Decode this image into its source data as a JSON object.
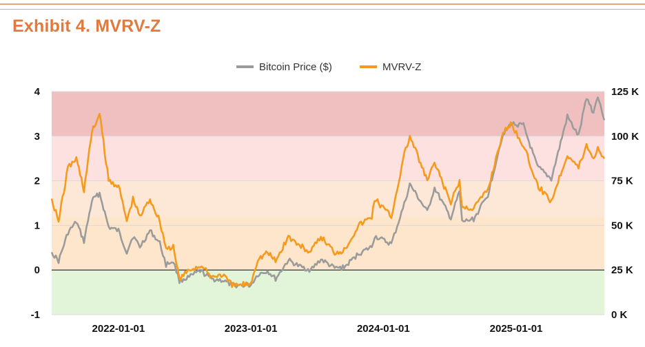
{
  "header": {
    "title": "Exhibit 4. MVRV-Z"
  },
  "chart_data": {
    "type": "line",
    "title": "Exhibit 4. MVRV-Z",
    "legend_position": "top-center",
    "colors": {
      "price": "#9b9b9b",
      "mvrvz": "#f59a1c",
      "zone_red": "#f0c0c0",
      "zone_pink": "#fde0e0",
      "zone_peach": "#fde8d8",
      "zone_orange": "#fde6cc",
      "zone_green": "#e2f5d8"
    },
    "zones": [
      {
        "from": 3,
        "to": 4,
        "color": "#f0c0c0"
      },
      {
        "from": 2,
        "to": 3,
        "color": "#fde0e0"
      },
      {
        "from": 1.2,
        "to": 2,
        "color": "#fde8d8"
      },
      {
        "from": 0,
        "to": 1.2,
        "color": "#fde6cc"
      },
      {
        "from": -1,
        "to": 0,
        "color": "#e2f5d8"
      }
    ],
    "y_left": {
      "min": -1,
      "max": 4,
      "ticks": [
        "4",
        "3",
        "2",
        "1",
        "0",
        "-1"
      ],
      "tick_values": [
        4,
        3,
        2,
        1,
        0,
        -1
      ]
    },
    "y_right": {
      "min": 0,
      "max": 125000,
      "ticks": [
        "125 K",
        "100 K",
        "75 K",
        "50 K",
        "25 K",
        "0 K"
      ],
      "tick_values": [
        125000,
        100000,
        75000,
        50000,
        25000,
        0
      ]
    },
    "x_ticks": [
      {
        "label": "2022-01-01",
        "value": "2022-01-01"
      },
      {
        "label": "2023-01-01",
        "value": "2023-01-01"
      },
      {
        "label": "2024-01-01",
        "value": "2024-01-01"
      },
      {
        "label": "2025-01-01",
        "value": "2025-01-01"
      }
    ],
    "x_range": [
      "2021-07-01",
      "2025-09-01"
    ],
    "series": [
      {
        "name": "Bitcoin Price ($)",
        "axis": "right",
        "points": [
          [
            "2021-07-01",
            35000
          ],
          [
            "2021-07-20",
            30000
          ],
          [
            "2021-08-15",
            46000
          ],
          [
            "2021-09-07",
            52000
          ],
          [
            "2021-09-28",
            41000
          ],
          [
            "2021-10-20",
            64000
          ],
          [
            "2021-11-10",
            68000
          ],
          [
            "2021-12-05",
            49000
          ],
          [
            "2022-01-01",
            47000
          ],
          [
            "2022-01-24",
            35000
          ],
          [
            "2022-02-10",
            44000
          ],
          [
            "2022-03-01",
            38000
          ],
          [
            "2022-03-29",
            47000
          ],
          [
            "2022-04-25",
            40000
          ],
          [
            "2022-05-12",
            28000
          ],
          [
            "2022-06-01",
            30000
          ],
          [
            "2022-06-18",
            19000
          ],
          [
            "2022-07-15",
            21000
          ],
          [
            "2022-08-14",
            24500
          ],
          [
            "2022-09-15",
            20000
          ],
          [
            "2022-10-15",
            19200
          ],
          [
            "2022-11-10",
            16500
          ],
          [
            "2022-12-31",
            16500
          ],
          [
            "2023-01-20",
            22500
          ],
          [
            "2023-02-16",
            24500
          ],
          [
            "2023-03-10",
            20000
          ],
          [
            "2023-04-14",
            30500
          ],
          [
            "2023-05-15",
            27000
          ],
          [
            "2023-06-15",
            25000
          ],
          [
            "2023-07-13",
            31000
          ],
          [
            "2023-08-20",
            26000
          ],
          [
            "2023-09-15",
            26500
          ],
          [
            "2023-10-24",
            34000
          ],
          [
            "2023-11-30",
            38000
          ],
          [
            "2023-12-08",
            44000
          ],
          [
            "2024-01-23",
            39500
          ],
          [
            "2024-02-28",
            62000
          ],
          [
            "2024-03-14",
            73000
          ],
          [
            "2024-05-01",
            57500
          ],
          [
            "2024-05-21",
            71000
          ],
          [
            "2024-07-05",
            54000
          ],
          [
            "2024-07-29",
            69000
          ],
          [
            "2024-08-05",
            52000
          ],
          [
            "2024-09-06",
            53500
          ],
          [
            "2024-10-15",
            67000
          ],
          [
            "2024-11-22",
            99000
          ],
          [
            "2024-12-17",
            107000
          ],
          [
            "2025-01-21",
            106000
          ],
          [
            "2025-02-28",
            83000
          ],
          [
            "2025-04-08",
            76000
          ],
          [
            "2025-05-22",
            111000
          ],
          [
            "2025-06-22",
            100000
          ],
          [
            "2025-07-14",
            122000
          ],
          [
            "2025-08-02",
            113000
          ],
          [
            "2025-08-14",
            123000
          ],
          [
            "2025-09-01",
            109000
          ]
        ]
      },
      {
        "name": "MVRV-Z",
        "axis": "left",
        "points": [
          [
            "2021-07-01",
            1.6
          ],
          [
            "2021-07-20",
            1.1
          ],
          [
            "2021-08-15",
            2.3
          ],
          [
            "2021-09-07",
            2.5
          ],
          [
            "2021-09-28",
            1.8
          ],
          [
            "2021-10-20",
            3.1
          ],
          [
            "2021-11-10",
            3.5
          ],
          [
            "2021-12-05",
            2.0
          ],
          [
            "2022-01-01",
            1.9
          ],
          [
            "2022-01-24",
            1.1
          ],
          [
            "2022-02-10",
            1.6
          ],
          [
            "2022-03-01",
            1.2
          ],
          [
            "2022-03-29",
            1.6
          ],
          [
            "2022-04-25",
            1.1
          ],
          [
            "2022-05-12",
            0.5
          ],
          [
            "2022-06-01",
            0.5
          ],
          [
            "2022-06-18",
            -0.2
          ],
          [
            "2022-07-15",
            0.0
          ],
          [
            "2022-08-14",
            0.1
          ],
          [
            "2022-09-15",
            -0.15
          ],
          [
            "2022-10-15",
            -0.1
          ],
          [
            "2022-11-10",
            -0.35
          ],
          [
            "2022-12-31",
            -0.3
          ],
          [
            "2023-01-20",
            0.25
          ],
          [
            "2023-02-16",
            0.4
          ],
          [
            "2023-03-10",
            0.2
          ],
          [
            "2023-04-14",
            0.75
          ],
          [
            "2023-05-15",
            0.55
          ],
          [
            "2023-06-15",
            0.4
          ],
          [
            "2023-07-13",
            0.75
          ],
          [
            "2023-08-20",
            0.4
          ],
          [
            "2023-09-15",
            0.45
          ],
          [
            "2023-10-24",
            1.0
          ],
          [
            "2023-11-30",
            1.2
          ],
          [
            "2023-12-08",
            1.6
          ],
          [
            "2024-01-23",
            1.2
          ],
          [
            "2024-02-28",
            2.6
          ],
          [
            "2024-03-14",
            3.0
          ],
          [
            "2024-05-01",
            2.0
          ],
          [
            "2024-05-21",
            2.4
          ],
          [
            "2024-07-05",
            1.5
          ],
          [
            "2024-07-29",
            2.0
          ],
          [
            "2024-08-05",
            1.4
          ],
          [
            "2024-09-06",
            1.4
          ],
          [
            "2024-10-15",
            1.8
          ],
          [
            "2024-11-22",
            3.0
          ],
          [
            "2024-12-17",
            3.3
          ],
          [
            "2025-01-21",
            2.8
          ],
          [
            "2025-02-28",
            1.9
          ],
          [
            "2025-04-08",
            1.55
          ],
          [
            "2025-05-22",
            2.6
          ],
          [
            "2025-06-22",
            2.3
          ],
          [
            "2025-07-14",
            2.8
          ],
          [
            "2025-08-02",
            2.5
          ],
          [
            "2025-08-14",
            2.75
          ],
          [
            "2025-09-01",
            2.5
          ]
        ]
      }
    ]
  }
}
